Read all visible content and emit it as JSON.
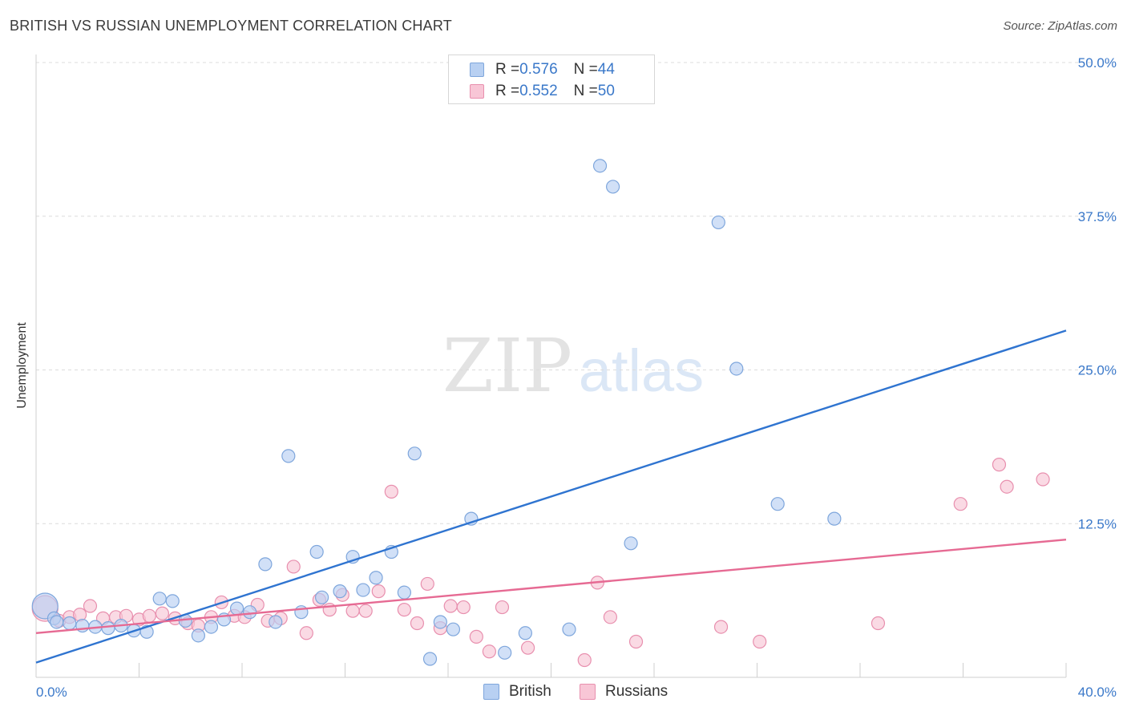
{
  "title": "BRITISH VS RUSSIAN UNEMPLOYMENT CORRELATION CHART",
  "source": "Source: ZipAtlas.com",
  "watermark": {
    "zip": "ZIP",
    "atlas": "atlas"
  },
  "legend_top": [
    {
      "r_label": "R = ",
      "r_value": "0.576",
      "n_label": "N = ",
      "n_value": "44"
    },
    {
      "r_label": "R = ",
      "r_value": "0.552",
      "n_label": "N = ",
      "n_value": "50"
    }
  ],
  "colors": {
    "british_fill": "#b8d0f2",
    "british_stroke": "#7ea6dc",
    "british_line": "#2f74d0",
    "russian_fill": "#f8c6d6",
    "russian_stroke": "#e88fae",
    "russian_line": "#e66a93",
    "axis_label": "#3a78c9",
    "grid": "#dcdcdc"
  },
  "chart_data": {
    "type": "scatter",
    "title": "BRITISH VS RUSSIAN UNEMPLOYMENT CORRELATION CHART",
    "xlabel": "",
    "ylabel": "Unemployment",
    "xlim": [
      0,
      40
    ],
    "ylim": [
      0,
      50
    ],
    "x_tick_labels": [
      "0.0%",
      "40.0%"
    ],
    "y_ticks": [
      12.5,
      25,
      37.5,
      50
    ],
    "y_tick_labels": [
      "12.5%",
      "25.0%",
      "37.5%",
      "50.0%"
    ],
    "grid": "horizontal dashed",
    "legend_placement": "bottom-center",
    "series": [
      {
        "name": "British",
        "r": 0.576,
        "n": 44,
        "trend": {
          "x": [
            0,
            40
          ],
          "y": [
            1.2,
            28.2
          ]
        },
        "points": [
          {
            "x": 0.35,
            "y": 5.8,
            "big": true
          },
          {
            "x": 0.7,
            "y": 4.8
          },
          {
            "x": 0.8,
            "y": 4.5
          },
          {
            "x": 1.3,
            "y": 4.4
          },
          {
            "x": 1.8,
            "y": 4.2
          },
          {
            "x": 2.3,
            "y": 4.1
          },
          {
            "x": 2.8,
            "y": 4.0
          },
          {
            "x": 3.3,
            "y": 4.2
          },
          {
            "x": 3.8,
            "y": 3.8
          },
          {
            "x": 4.3,
            "y": 3.7
          },
          {
            "x": 4.8,
            "y": 6.4
          },
          {
            "x": 5.3,
            "y": 6.2
          },
          {
            "x": 5.8,
            "y": 4.6
          },
          {
            "x": 6.3,
            "y": 3.4
          },
          {
            "x": 6.8,
            "y": 4.1
          },
          {
            "x": 7.3,
            "y": 4.7
          },
          {
            "x": 7.8,
            "y": 5.6
          },
          {
            "x": 8.3,
            "y": 5.3
          },
          {
            "x": 8.9,
            "y": 9.2
          },
          {
            "x": 9.3,
            "y": 4.5
          },
          {
            "x": 9.8,
            "y": 18.0
          },
          {
            "x": 10.3,
            "y": 5.3
          },
          {
            "x": 10.9,
            "y": 10.2
          },
          {
            "x": 11.1,
            "y": 6.5
          },
          {
            "x": 11.8,
            "y": 7.0
          },
          {
            "x": 12.3,
            "y": 9.8
          },
          {
            "x": 12.7,
            "y": 7.1
          },
          {
            "x": 13.2,
            "y": 8.1
          },
          {
            "x": 13.8,
            "y": 10.2
          },
          {
            "x": 14.3,
            "y": 6.9
          },
          {
            "x": 14.7,
            "y": 18.2
          },
          {
            "x": 15.3,
            "y": 1.5
          },
          {
            "x": 15.7,
            "y": 4.5
          },
          {
            "x": 16.2,
            "y": 3.9
          },
          {
            "x": 16.9,
            "y": 12.9
          },
          {
            "x": 18.2,
            "y": 2.0
          },
          {
            "x": 19.0,
            "y": 3.6
          },
          {
            "x": 20.7,
            "y": 3.9
          },
          {
            "x": 21.9,
            "y": 41.6
          },
          {
            "x": 22.4,
            "y": 39.9
          },
          {
            "x": 23.1,
            "y": 10.9
          },
          {
            "x": 26.5,
            "y": 37.0
          },
          {
            "x": 27.2,
            "y": 25.1
          },
          {
            "x": 28.8,
            "y": 14.1
          },
          {
            "x": 31.0,
            "y": 12.9
          }
        ]
      },
      {
        "name": "Russians",
        "r": 0.552,
        "n": 50,
        "trend": {
          "x": [
            0,
            40
          ],
          "y": [
            3.6,
            11.2
          ]
        },
        "points": [
          {
            "x": 0.35,
            "y": 5.6,
            "big": true
          },
          {
            "x": 0.9,
            "y": 4.6
          },
          {
            "x": 1.3,
            "y": 4.9
          },
          {
            "x": 1.7,
            "y": 5.1
          },
          {
            "x": 2.1,
            "y": 5.8
          },
          {
            "x": 2.6,
            "y": 4.8
          },
          {
            "x": 3.1,
            "y": 4.9
          },
          {
            "x": 3.5,
            "y": 5.0
          },
          {
            "x": 4.0,
            "y": 4.7
          },
          {
            "x": 4.4,
            "y": 5.0
          },
          {
            "x": 4.9,
            "y": 5.2
          },
          {
            "x": 5.4,
            "y": 4.8
          },
          {
            "x": 5.9,
            "y": 4.4
          },
          {
            "x": 6.3,
            "y": 4.2
          },
          {
            "x": 6.8,
            "y": 4.9
          },
          {
            "x": 7.2,
            "y": 6.1
          },
          {
            "x": 7.7,
            "y": 5.0
          },
          {
            "x": 8.1,
            "y": 4.9
          },
          {
            "x": 8.6,
            "y": 5.9
          },
          {
            "x": 9.0,
            "y": 4.6
          },
          {
            "x": 9.5,
            "y": 4.8
          },
          {
            "x": 10.0,
            "y": 9.0
          },
          {
            "x": 10.5,
            "y": 3.6
          },
          {
            "x": 11.0,
            "y": 6.3
          },
          {
            "x": 11.4,
            "y": 5.5
          },
          {
            "x": 11.9,
            "y": 6.7
          },
          {
            "x": 12.3,
            "y": 5.4
          },
          {
            "x": 12.8,
            "y": 5.4
          },
          {
            "x": 13.3,
            "y": 7.0
          },
          {
            "x": 13.8,
            "y": 15.1
          },
          {
            "x": 14.3,
            "y": 5.5
          },
          {
            "x": 14.8,
            "y": 4.4
          },
          {
            "x": 15.2,
            "y": 7.6
          },
          {
            "x": 15.7,
            "y": 4.0
          },
          {
            "x": 16.1,
            "y": 5.8
          },
          {
            "x": 16.6,
            "y": 5.7
          },
          {
            "x": 17.1,
            "y": 3.3
          },
          {
            "x": 17.6,
            "y": 2.1
          },
          {
            "x": 18.1,
            "y": 5.7
          },
          {
            "x": 19.1,
            "y": 2.4
          },
          {
            "x": 21.3,
            "y": 1.4
          },
          {
            "x": 21.8,
            "y": 7.7
          },
          {
            "x": 22.3,
            "y": 4.9
          },
          {
            "x": 23.3,
            "y": 2.9
          },
          {
            "x": 26.6,
            "y": 4.1
          },
          {
            "x": 28.1,
            "y": 2.9
          },
          {
            "x": 32.7,
            "y": 4.4
          },
          {
            "x": 35.9,
            "y": 14.1
          },
          {
            "x": 37.4,
            "y": 17.3
          },
          {
            "x": 37.7,
            "y": 15.5
          },
          {
            "x": 39.1,
            "y": 16.1
          }
        ]
      }
    ]
  }
}
